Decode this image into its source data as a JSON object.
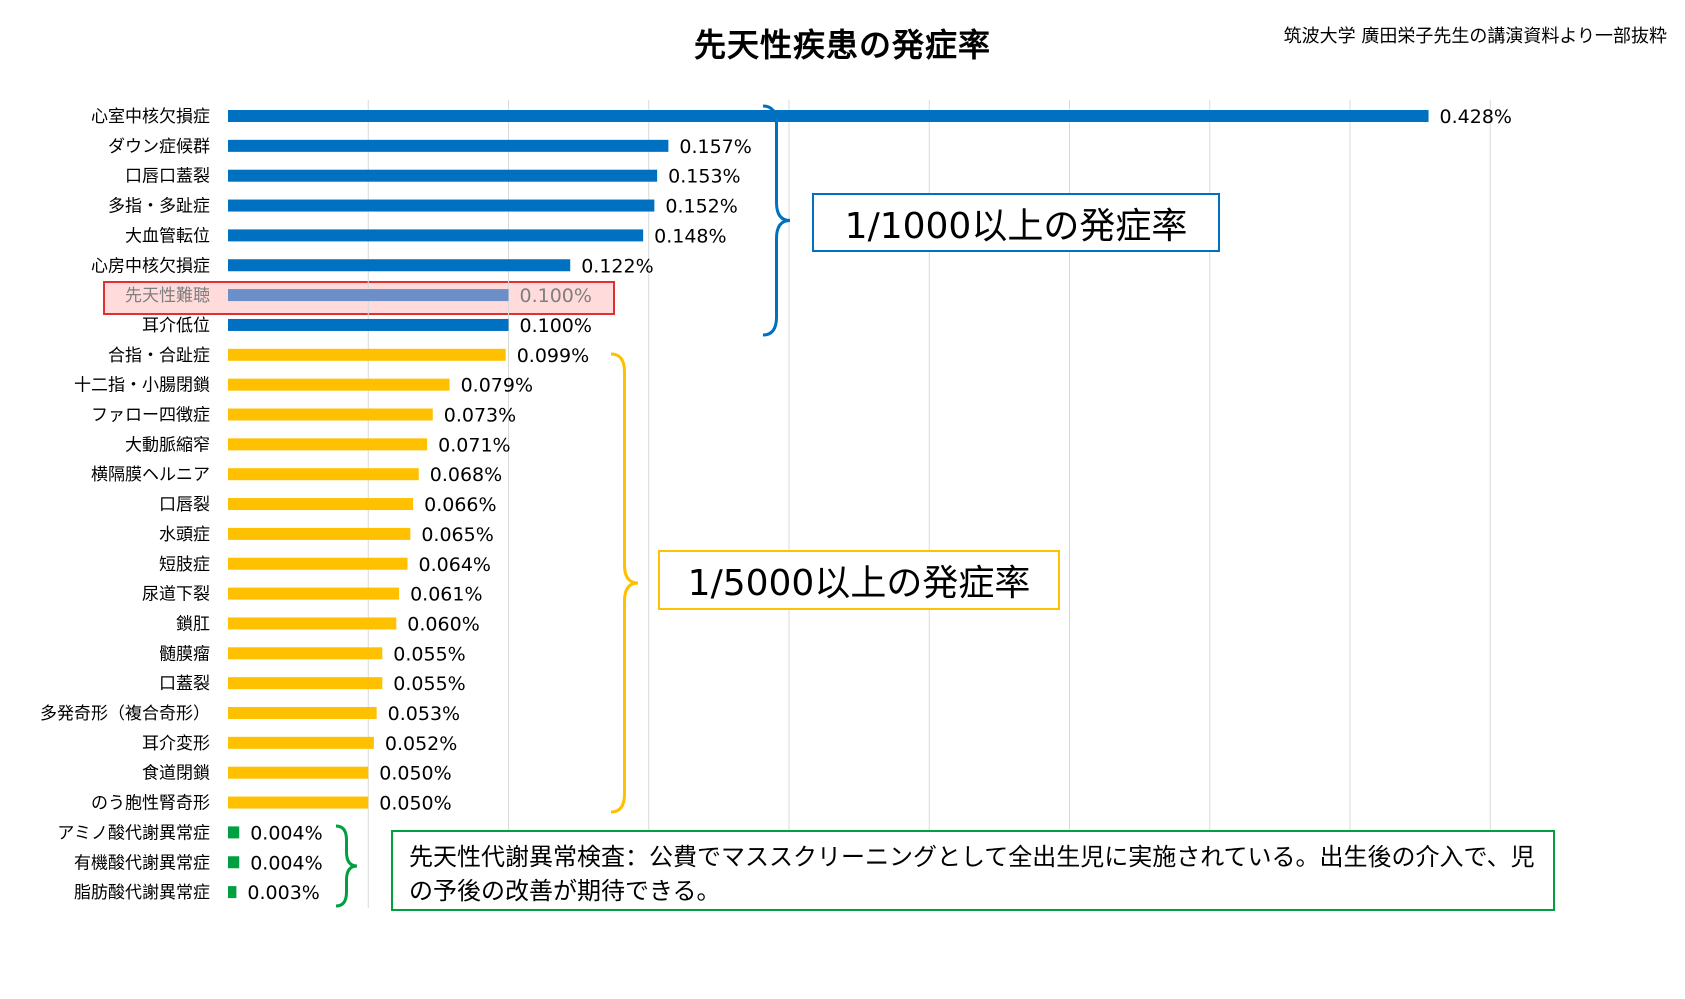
{
  "title": "先天性疾患の発症率",
  "source": "筑波大学 廣田栄子先生の講演資料より一部抜粋",
  "chart_data": {
    "type": "bar",
    "orientation": "horizontal",
    "title": "先天性疾患の発症率",
    "xlim": [
      0,
      0.45
    ],
    "grid": true,
    "unit": "%",
    "highlighted": "先天性難聴",
    "categories": [
      "心室中核欠損症",
      "ダウン症候群",
      "口唇口蓋裂",
      "多指・多趾症",
      "大血管転位",
      "心房中核欠損症",
      "先天性難聴",
      "耳介低位",
      "合指・合趾症",
      "十二指・小腸閉鎖",
      "ファロー四徴症",
      "大動脈縮窄",
      "横隔膜ヘルニア",
      "口唇裂",
      "水頭症",
      "短肢症",
      "尿道下裂",
      "鎖肛",
      "髄膜瘤",
      "口蓋裂",
      "多発奇形（複合奇形）",
      "耳介変形",
      "食道閉鎖",
      "のう胞性腎奇形",
      "アミノ酸代謝異常症",
      "有機酸代謝異常症",
      "脂肪酸代謝異常症"
    ],
    "values": [
      0.428,
      0.157,
      0.153,
      0.152,
      0.148,
      0.122,
      0.1,
      0.1,
      0.099,
      0.079,
      0.073,
      0.071,
      0.068,
      0.066,
      0.065,
      0.064,
      0.061,
      0.06,
      0.055,
      0.055,
      0.053,
      0.052,
      0.05,
      0.05,
      0.004,
      0.004,
      0.003
    ],
    "labels": [
      "0.428%",
      "0.157%",
      "0.153%",
      "0.152%",
      "0.148%",
      "0.122%",
      "0.100%",
      "0.100%",
      "0.099%",
      "0.079%",
      "0.073%",
      "0.071%",
      "0.068%",
      "0.066%",
      "0.065%",
      "0.064%",
      "0.061%",
      "0.060%",
      "0.055%",
      "0.055%",
      "0.053%",
      "0.052%",
      "0.050%",
      "0.050%",
      "0.004%",
      "0.004%",
      "0.003%"
    ],
    "groups": [
      "blue",
      "blue",
      "blue",
      "blue",
      "blue",
      "blue",
      "highlight",
      "blue",
      "yellow",
      "yellow",
      "yellow",
      "yellow",
      "yellow",
      "yellow",
      "yellow",
      "yellow",
      "yellow",
      "yellow",
      "yellow",
      "yellow",
      "yellow",
      "yellow",
      "yellow",
      "yellow",
      "green",
      "green",
      "green"
    ]
  },
  "colors": {
    "blue": "#0070c0",
    "highlight": "#6b8fc6",
    "yellow": "#ffc000",
    "green": "#00a040",
    "grid": "#d9d9d9",
    "highlight_text": "#7f7f7f"
  },
  "annotations": {
    "blue": "1/1000以上の発症率",
    "yellow": "1/5000以上の発症率",
    "green": "先天性代謝異常検査：公費でマススクリーニングとして全出生児に実施されている。出生後の介入で、児の予後の改善が期待できる。"
  }
}
